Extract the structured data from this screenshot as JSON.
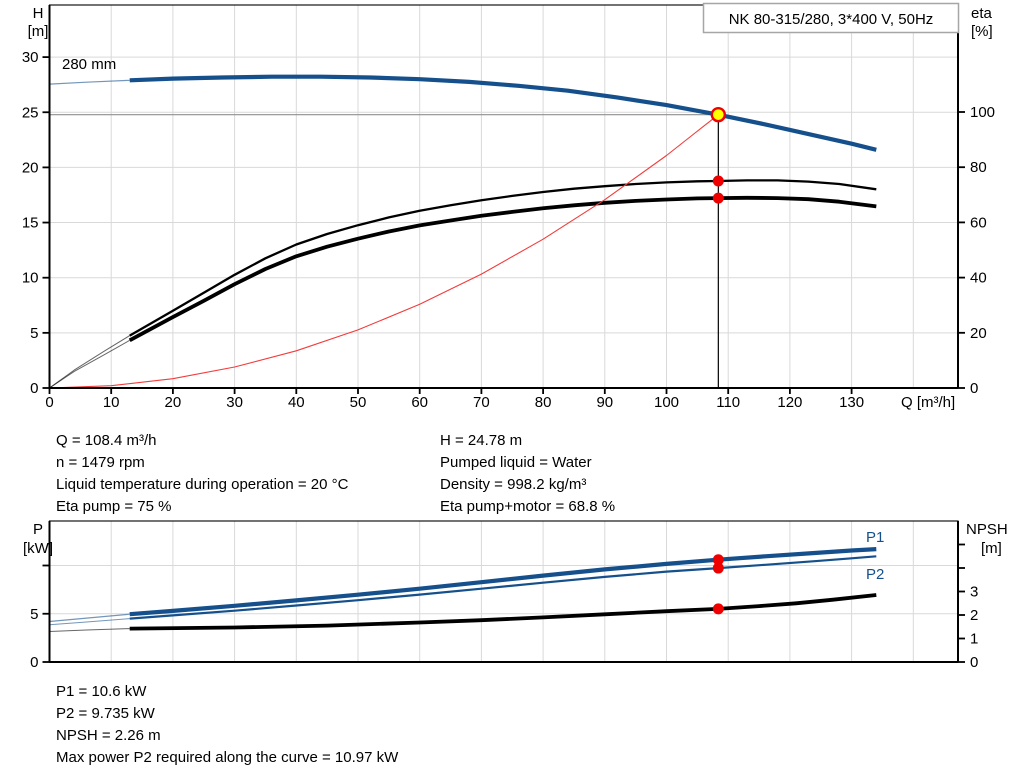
{
  "title_box": {
    "label": "NK 80-315/280, 3*400 V, 50Hz"
  },
  "colors": {
    "curve_blue": "#15508c",
    "curve_black": "#000000",
    "system_curve_red": "#f23b3b",
    "dot_red": "#ee0000",
    "duty_yellow": "#ffff00",
    "grid": "#d9d9d9",
    "frame": "#000000",
    "duty_line_gray": "#8f8f8f",
    "box_border": "#a6a6a6"
  },
  "top_chart": {
    "y_left_title": [
      "H",
      "[m]"
    ],
    "y_right_title": [
      "eta",
      "[%]"
    ],
    "x_title": "Q [m³/h]",
    "impeller_label": "280 mm"
  },
  "bottom_chart": {
    "y_left_title": [
      "P",
      "[kW]"
    ],
    "y_right_title": [
      "NPSH",
      "[m]"
    ],
    "p1_label": "P1",
    "p2_label": "P2"
  },
  "info_top_left": [
    "Q = 108.4 m³/h",
    "n = 1479 rpm",
    "Liquid temperature during operation = 20 °C",
    "Eta pump = 75 %"
  ],
  "info_top_right": [
    "H = 24.78 m",
    "Pumped liquid = Water",
    "Density = 998.2 kg/m³",
    "Eta pump+motor = 68.8 %"
  ],
  "info_bottom": [
    "P1 = 10.6 kW",
    "P2 = 9.735 kW",
    "NPSH = 2.26 m",
    "Max power P2 required along the curve = 10.97 kW"
  ],
  "chart_data": [
    {
      "id": "head-efficiency-chart",
      "type": "line",
      "title": "NK 80-315/280, 3*400 V, 50Hz",
      "xlabel": "Q [m³/h]",
      "ylabel_left": "H [m]",
      "ylabel_right": "eta [%]",
      "xlim": [
        0,
        147
      ],
      "ylim_left": [
        0,
        34.7
      ],
      "ylim_right": [
        0,
        138.8
      ],
      "x_ticks": [
        0,
        10,
        20,
        30,
        40,
        50,
        60,
        70,
        80,
        90,
        100,
        110,
        120,
        130
      ],
      "x_grid": [
        10,
        20,
        30,
        40,
        50,
        60,
        70,
        80,
        90,
        100,
        110,
        120,
        130,
        140
      ],
      "y_left_ticks": [
        0,
        5,
        10,
        15,
        20,
        25,
        30
      ],
      "y_right_ticks": [
        0,
        20,
        40,
        60,
        80,
        100
      ],
      "grid_on": true,
      "series": [
        {
          "name": "head-curve-280mm",
          "label": "280 mm",
          "axis": "left",
          "color": "curve_blue",
          "segments": [
            {
              "width": 1.2,
              "faded": true,
              "points": [
                [
                  0,
                  27.55
                ],
                [
                  6,
                  27.72
                ],
                [
                  13,
                  27.9
                ]
              ]
            },
            {
              "width": 4.2,
              "faded": false,
              "points": [
                [
                  13,
                  27.9
                ],
                [
                  20,
                  28.05
                ],
                [
                  28,
                  28.15
                ],
                [
                  36,
                  28.22
                ],
                [
                  44,
                  28.22
                ],
                [
                  52,
                  28.15
                ],
                [
                  60,
                  28.0
                ],
                [
                  68,
                  27.75
                ],
                [
                  76,
                  27.4
                ],
                [
                  84,
                  26.95
                ],
                [
                  92,
                  26.35
                ],
                [
                  100,
                  25.65
                ],
                [
                  108.4,
                  24.78
                ],
                [
                  116,
                  23.9
                ],
                [
                  124,
                  22.9
                ],
                [
                  130,
                  22.15
                ],
                [
                  134,
                  21.6
                ]
              ]
            }
          ]
        },
        {
          "name": "eta-pump-curve",
          "label": "eta pump",
          "axis": "right",
          "color": "curve_black",
          "segments": [
            {
              "width": 1,
              "faded": true,
              "points": [
                [
                  0,
                  0
                ],
                [
                  4,
                  6.5
                ],
                [
                  9,
                  13.5
                ],
                [
                  13,
                  19
                ]
              ]
            },
            {
              "width": 2.3,
              "faded": false,
              "points": [
                [
                  13,
                  19
                ],
                [
                  20,
                  28
                ],
                [
                  25,
                  34.5
                ],
                [
                  30,
                  41
                ],
                [
                  35,
                  47
                ],
                [
                  40,
                  52
                ],
                [
                  45,
                  55.8
                ],
                [
                  50,
                  59
                ],
                [
                  55,
                  61.8
                ],
                [
                  60,
                  64.2
                ],
                [
                  65,
                  66.2
                ],
                [
                  70,
                  68
                ],
                [
                  75,
                  69.6
                ],
                [
                  80,
                  71
                ],
                [
                  85,
                  72.2
                ],
                [
                  90,
                  73.1
                ],
                [
                  95,
                  73.9
                ],
                [
                  100,
                  74.5
                ],
                [
                  105,
                  74.9
                ],
                [
                  108.4,
                  75
                ],
                [
                  113,
                  75.2
                ],
                [
                  118,
                  75.2
                ],
                [
                  123,
                  74.8
                ],
                [
                  128,
                  73.9
                ],
                [
                  134,
                  72
                ]
              ]
            }
          ]
        },
        {
          "name": "eta-pump-motor-curve",
          "label": "eta pump+motor",
          "axis": "right",
          "color": "curve_black",
          "segments": [
            {
              "width": 1,
              "faded": true,
              "points": [
                [
                  0,
                  0
                ],
                [
                  4,
                  6
                ],
                [
                  9,
                  12.2
                ],
                [
                  13,
                  17.3
                ]
              ]
            },
            {
              "width": 3.8,
              "faded": false,
              "points": [
                [
                  13,
                  17.3
                ],
                [
                  20,
                  25.7
                ],
                [
                  25,
                  31.6
                ],
                [
                  30,
                  37.6
                ],
                [
                  35,
                  43.1
                ],
                [
                  40,
                  47.7
                ],
                [
                  45,
                  51.2
                ],
                [
                  50,
                  54.1
                ],
                [
                  55,
                  56.7
                ],
                [
                  60,
                  58.9
                ],
                [
                  65,
                  60.7
                ],
                [
                  70,
                  62.4
                ],
                [
                  75,
                  63.8
                ],
                [
                  80,
                  65.1
                ],
                [
                  85,
                  66.2
                ],
                [
                  90,
                  67.1
                ],
                [
                  95,
                  67.8
                ],
                [
                  100,
                  68.3
                ],
                [
                  105,
                  68.7
                ],
                [
                  108.4,
                  68.8
                ],
                [
                  113,
                  68.9
                ],
                [
                  118,
                  68.8
                ],
                [
                  123,
                  68.4
                ],
                [
                  128,
                  67.5
                ],
                [
                  134,
                  65.8
                ]
              ]
            }
          ]
        },
        {
          "name": "system-resistance-curve",
          "label": "system curve",
          "axis": "left",
          "color": "system_curve_red",
          "segments": [
            {
              "width": 1.1,
              "faded": false,
              "points": [
                [
                  0,
                  0
                ],
                [
                  10,
                  0.21
                ],
                [
                  20,
                  0.84
                ],
                [
                  30,
                  1.9
                ],
                [
                  40,
                  3.37
                ],
                [
                  50,
                  5.27
                ],
                [
                  60,
                  7.59
                ],
                [
                  70,
                  10.33
                ],
                [
                  80,
                  13.49
                ],
                [
                  90,
                  17.07
                ],
                [
                  100,
                  21.08
                ],
                [
                  104,
                  22.85
                ],
                [
                  108.4,
                  24.78
                ]
              ]
            }
          ]
        }
      ],
      "duty_point": {
        "q": 108.4,
        "h": 24.78,
        "eta_pump": 75,
        "eta_pump_motor": 68.8
      }
    },
    {
      "id": "power-npsh-chart",
      "type": "line",
      "xlabel": "",
      "ylabel_left": "P [kW]",
      "ylabel_right": "NPSH [m]",
      "xlim": [
        0,
        147
      ],
      "ylim_left": [
        0,
        14.6
      ],
      "ylim_right": [
        0,
        6
      ],
      "x_ticks": [],
      "x_grid": [
        10,
        20,
        30,
        40,
        50,
        60,
        70,
        80,
        90,
        100,
        110,
        120,
        130,
        140
      ],
      "y_left_ticks": [
        0,
        5
      ],
      "y_left_unlabeled_ticks": [
        10
      ],
      "y_right_ticks": [
        0,
        1,
        2,
        3
      ],
      "y_right_unlabeled_ticks": [
        4,
        5
      ],
      "grid_on": true,
      "series": [
        {
          "name": "p1-curve",
          "label": "P1",
          "axis": "left",
          "color": "curve_blue",
          "segments": [
            {
              "width": 1.2,
              "faded": true,
              "points": [
                [
                  0,
                  4.2
                ],
                [
                  6,
                  4.55
                ],
                [
                  13,
                  4.95
                ]
              ]
            },
            {
              "width": 4.2,
              "faded": false,
              "points": [
                [
                  13,
                  4.95
                ],
                [
                  20,
                  5.3
                ],
                [
                  30,
                  5.82
                ],
                [
                  40,
                  6.38
                ],
                [
                  50,
                  6.97
                ],
                [
                  60,
                  7.6
                ],
                [
                  70,
                  8.27
                ],
                [
                  80,
                  8.95
                ],
                [
                  90,
                  9.6
                ],
                [
                  100,
                  10.17
                ],
                [
                  108.4,
                  10.6
                ],
                [
                  116,
                  10.95
                ],
                [
                  124,
                  11.3
                ],
                [
                  130,
                  11.55
                ],
                [
                  134,
                  11.7
                ]
              ]
            }
          ]
        },
        {
          "name": "p2-curve",
          "label": "P2",
          "axis": "left",
          "color": "curve_blue",
          "segments": [
            {
              "width": 1,
              "faded": true,
              "points": [
                [
                  0,
                  3.85
                ],
                [
                  6,
                  4.15
                ],
                [
                  13,
                  4.5
                ]
              ]
            },
            {
              "width": 2.2,
              "faded": false,
              "points": [
                [
                  13,
                  4.5
                ],
                [
                  20,
                  4.83
                ],
                [
                  30,
                  5.32
                ],
                [
                  40,
                  5.85
                ],
                [
                  50,
                  6.4
                ],
                [
                  60,
                  6.98
                ],
                [
                  70,
                  7.6
                ],
                [
                  80,
                  8.22
                ],
                [
                  90,
                  8.82
                ],
                [
                  100,
                  9.37
                ],
                [
                  108.4,
                  9.735
                ],
                [
                  116,
                  10.07
                ],
                [
                  124,
                  10.45
                ],
                [
                  130,
                  10.75
                ],
                [
                  134,
                  10.95
                ]
              ]
            }
          ]
        },
        {
          "name": "npsh-curve",
          "label": "NPSH",
          "axis": "right",
          "color": "curve_black",
          "segments": [
            {
              "width": 1,
              "faded": true,
              "points": [
                [
                  0,
                  1.3
                ],
                [
                  6,
                  1.36
                ],
                [
                  13,
                  1.42
                ]
              ]
            },
            {
              "width": 3.8,
              "faded": false,
              "points": [
                [
                  13,
                  1.42
                ],
                [
                  30,
                  1.47
                ],
                [
                  45,
                  1.55
                ],
                [
                  60,
                  1.68
                ],
                [
                  70,
                  1.78
                ],
                [
                  80,
                  1.9
                ],
                [
                  90,
                  2.03
                ],
                [
                  100,
                  2.16
                ],
                [
                  108.4,
                  2.26
                ],
                [
                  115,
                  2.38
                ],
                [
                  121,
                  2.5
                ],
                [
                  127,
                  2.65
                ],
                [
                  134,
                  2.85
                ]
              ]
            }
          ]
        }
      ],
      "duty_point": {
        "q": 108.4,
        "p1": 10.6,
        "p2": 9.735,
        "npsh": 2.26
      }
    }
  ]
}
